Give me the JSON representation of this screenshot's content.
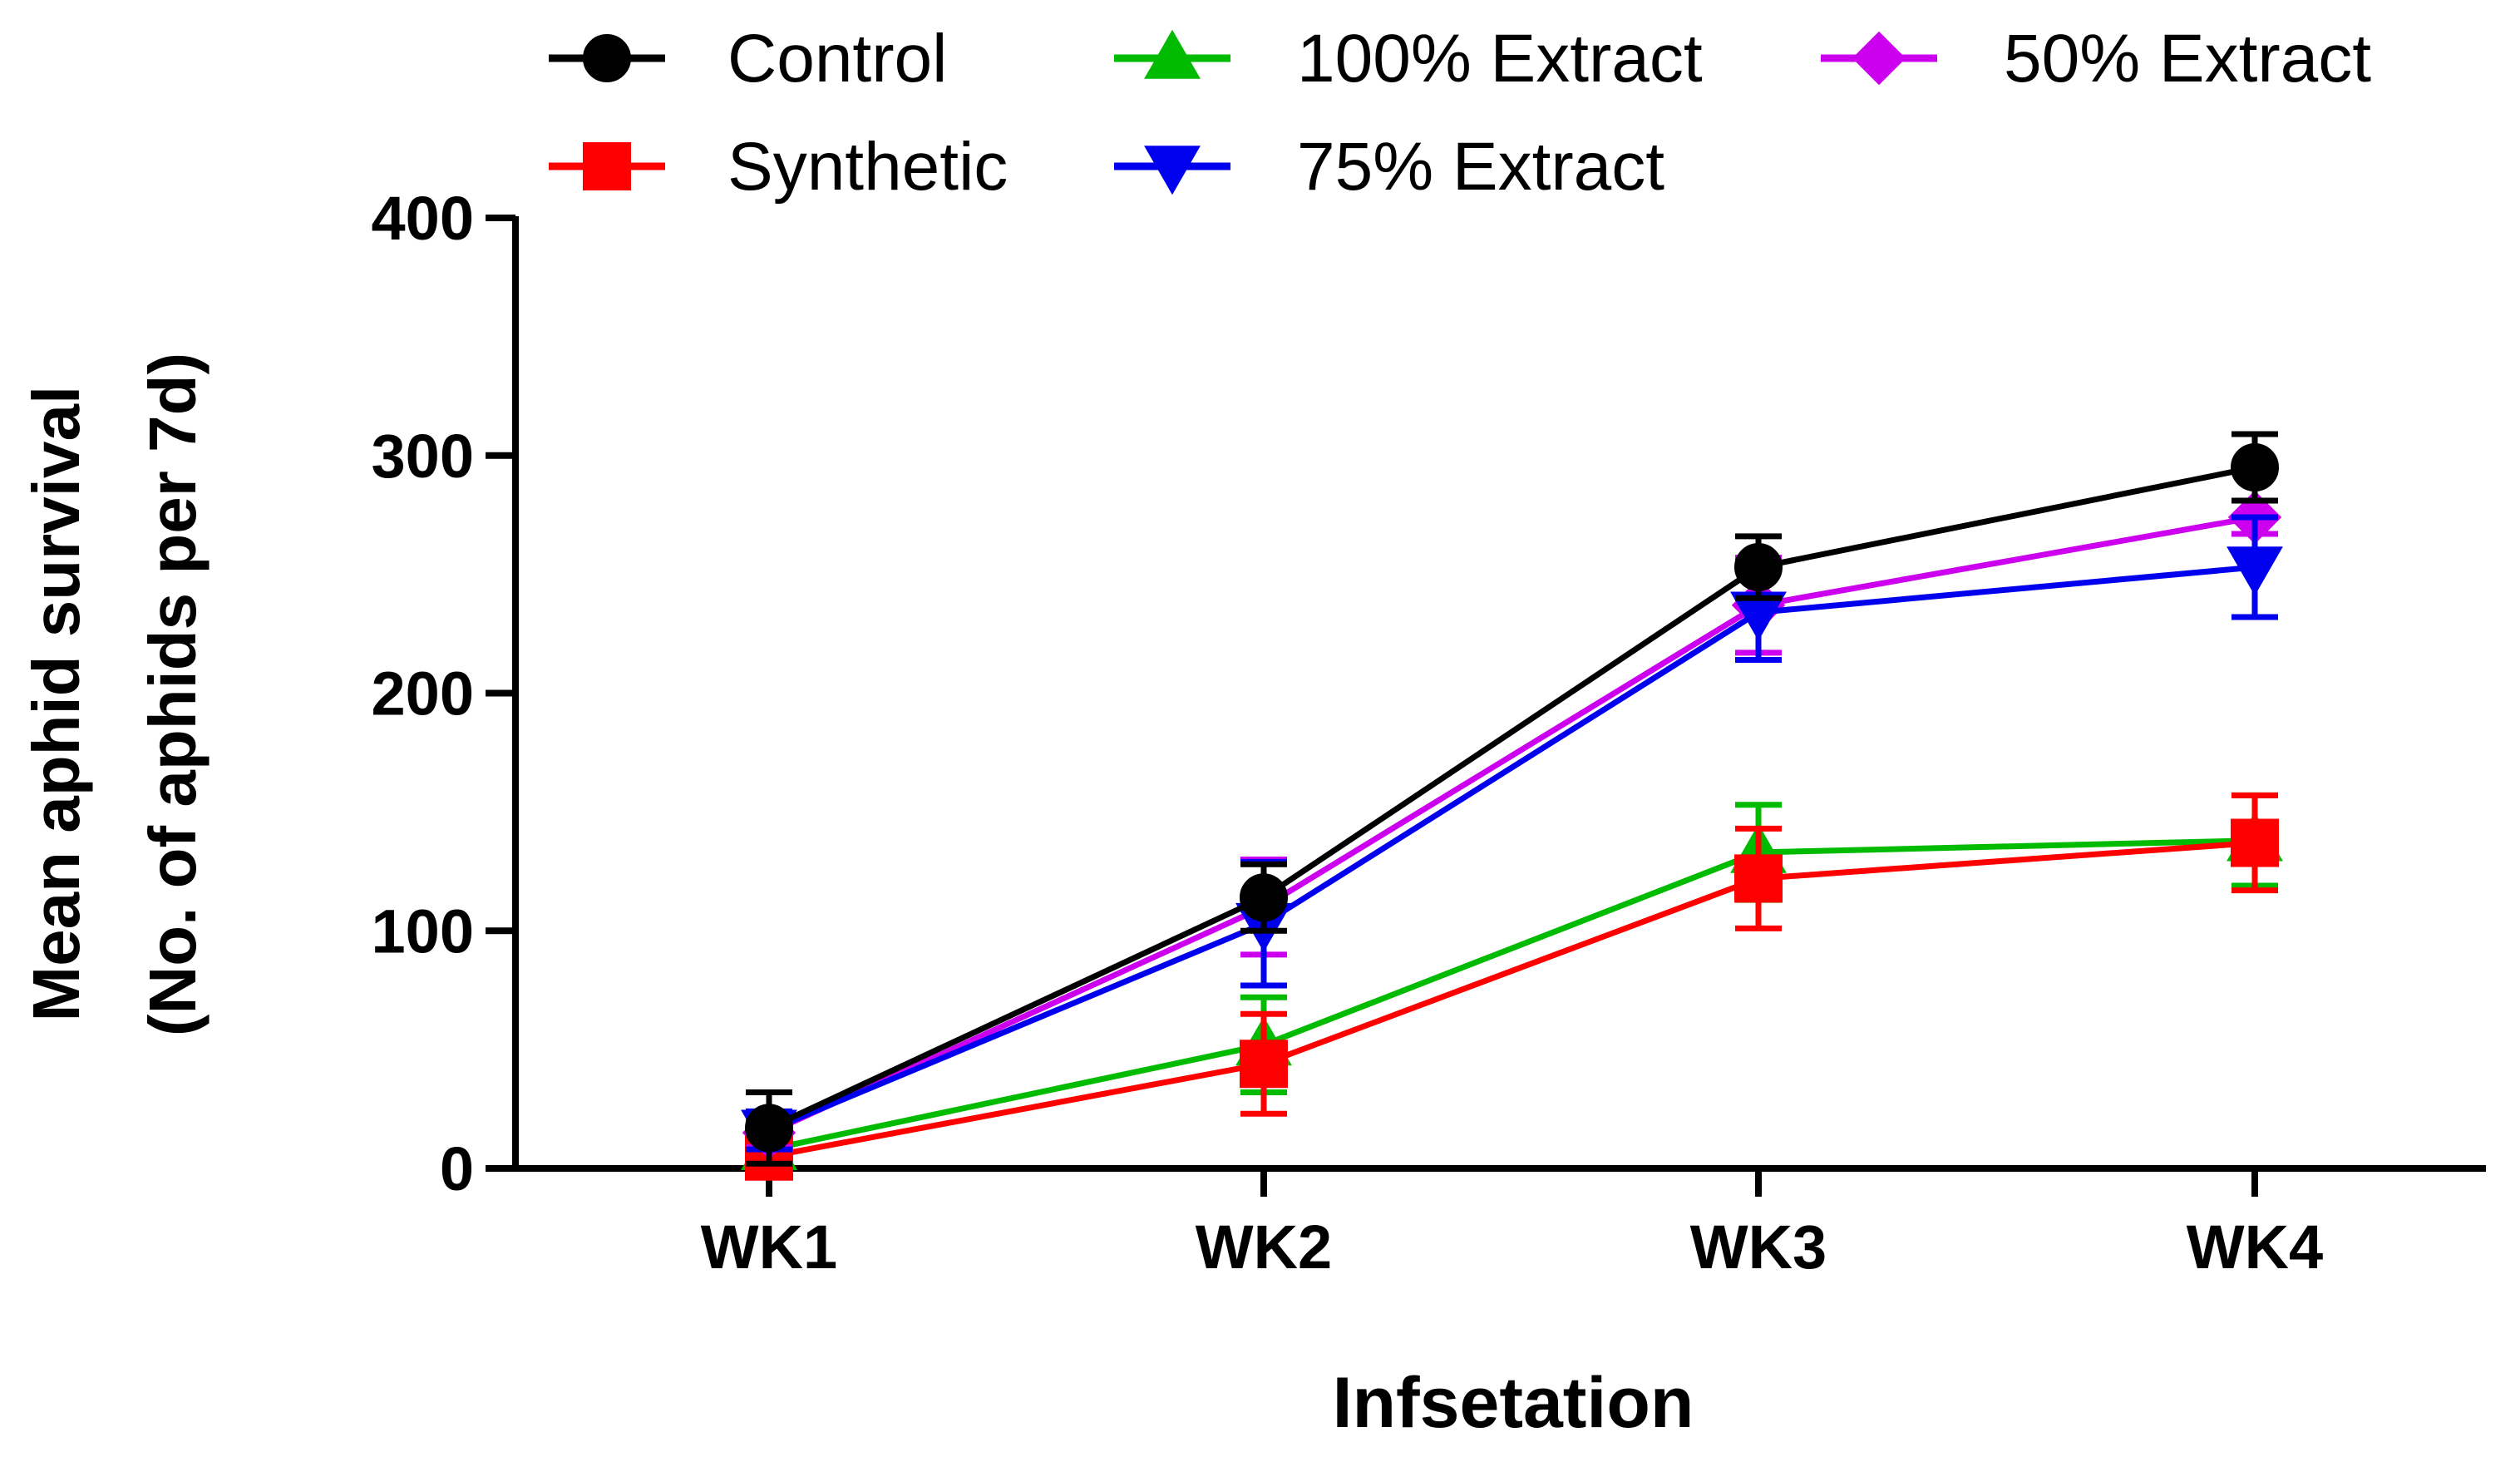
{
  "chart_data": {
    "type": "line",
    "title": "",
    "xlabel": "Infsetation",
    "ylabel_lines": [
      "Mean aphid survival",
      "(No. of aphids per 7d)"
    ],
    "categories": [
      "WK1",
      "WK2",
      "WK3",
      "WK4"
    ],
    "ylim": [
      0,
      400
    ],
    "yticks": [
      0,
      100,
      200,
      300,
      400
    ],
    "legend_position": "top",
    "series": [
      {
        "name": "Control",
        "color": "#000000",
        "marker": "circle",
        "values": [
          17,
          114,
          253,
          295
        ],
        "errors": [
          15,
          14,
          13,
          14
        ]
      },
      {
        "name": "Synthetic",
        "color": "#ff0000",
        "marker": "square",
        "values": [
          5,
          44,
          122,
          137
        ],
        "errors": [
          8,
          21,
          21,
          20
        ]
      },
      {
        "name": "100% Extract",
        "color": "#00bb00",
        "marker": "triangle-up",
        "values": [
          8,
          52,
          133,
          138
        ],
        "errors": [
          5,
          20,
          20,
          19
        ]
      },
      {
        "name": "75% Extract",
        "color": "#0000ee",
        "marker": "triangle-down",
        "values": [
          16,
          103,
          234,
          253
        ],
        "errors": [
          8,
          26,
          20,
          21
        ]
      },
      {
        "name": "50% Extract",
        "color": "#cc00ee",
        "marker": "diamond",
        "values": [
          15,
          110,
          237,
          274
        ],
        "errors": [
          6,
          20,
          20,
          7
        ]
      }
    ]
  }
}
